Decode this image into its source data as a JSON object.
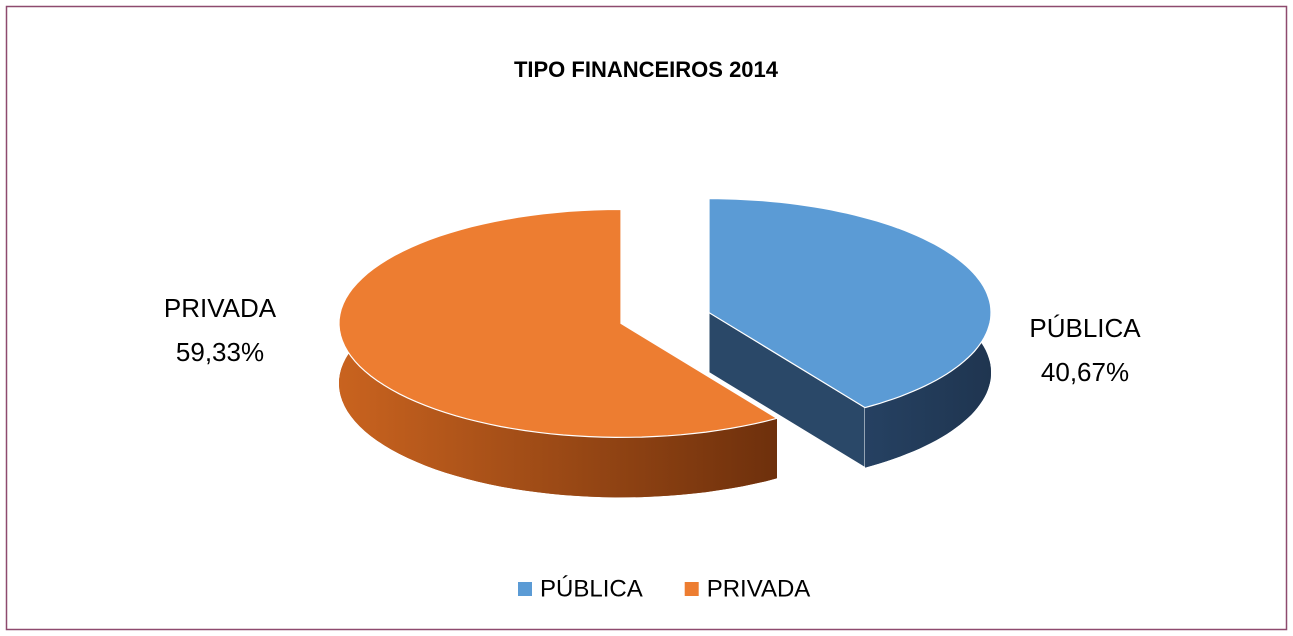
{
  "chart_data": {
    "type": "pie3d",
    "title": "TIPO FINANCEIROS 2014",
    "categories": [
      "PÚBLICA",
      "PRIVADA"
    ],
    "values": [
      40.67,
      59.33
    ],
    "value_labels": [
      "40,67%",
      "59,33%"
    ],
    "colors": [
      "#5b9bd5",
      "#ed7d31"
    ],
    "legend": "bottom"
  }
}
